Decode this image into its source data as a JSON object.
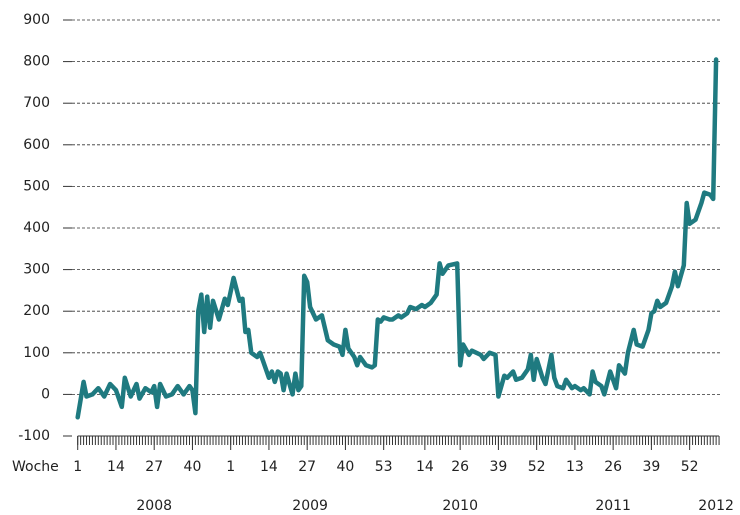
{
  "chart_data": {
    "type": "line",
    "x_axis_label": "Woche",
    "x": [
      1,
      3,
      4,
      6,
      8,
      10,
      12,
      14,
      16,
      17,
      19,
      21,
      22,
      24,
      26,
      27,
      28,
      29,
      31,
      33,
      35,
      37,
      39,
      40,
      41,
      42,
      43,
      44,
      45,
      46,
      47,
      49,
      51,
      52,
      54,
      56,
      57,
      58,
      59,
      60,
      62,
      63,
      64,
      66,
      67,
      68,
      69,
      70,
      71,
      72,
      73,
      74,
      75,
      76,
      77,
      78,
      79,
      80,
      82,
      84,
      86,
      88,
      90,
      91,
      92,
      93,
      95,
      96,
      97,
      99,
      101,
      102,
      103,
      104,
      105,
      107,
      108,
      110,
      111,
      113,
      114,
      116,
      118,
      119,
      121,
      123,
      124,
      125,
      126,
      127,
      130,
      131,
      132,
      134,
      135,
      138,
      139,
      141,
      143,
      144,
      146,
      147,
      149,
      150,
      152,
      154,
      155,
      156,
      157,
      159,
      160,
      162,
      163,
      164,
      166,
      167,
      169,
      170,
      172,
      173,
      175,
      176,
      177,
      179,
      180,
      182,
      184,
      185,
      187,
      188,
      190,
      191,
      193,
      195,
      196,
      197,
      198,
      199,
      201,
      203,
      204,
      205,
      207,
      208,
      209,
      211,
      213,
      214,
      216,
      217,
      218
    ],
    "series": [
      {
        "name": "Woche",
        "color": "#1f7a80",
        "values": [
          -55,
          30,
          -5,
          0,
          15,
          -5,
          25,
          10,
          -30,
          40,
          -5,
          25,
          -10,
          15,
          5,
          20,
          -30,
          25,
          -5,
          0,
          20,
          0,
          20,
          10,
          -45,
          200,
          240,
          150,
          235,
          160,
          225,
          180,
          230,
          215,
          280,
          225,
          230,
          150,
          155,
          100,
          90,
          100,
          80,
          40,
          55,
          30,
          55,
          50,
          10,
          50,
          25,
          0,
          50,
          10,
          20,
          285,
          270,
          210,
          180,
          190,
          130,
          120,
          115,
          95,
          155,
          110,
          90,
          70,
          90,
          70,
          65,
          70,
          180,
          175,
          185,
          180,
          180,
          190,
          185,
          195,
          210,
          205,
          215,
          210,
          220,
          240,
          315,
          290,
          300,
          310,
          315,
          70,
          120,
          95,
          105,
          95,
          85,
          100,
          95,
          -5,
          45,
          40,
          55,
          35,
          40,
          60,
          95,
          35,
          85,
          40,
          25,
          95,
          40,
          20,
          15,
          35,
          15,
          20,
          10,
          15,
          0,
          55,
          30,
          20,
          0,
          55,
          15,
          70,
          50,
          100,
          155,
          120,
          115,
          155,
          195,
          200,
          225,
          210,
          220,
          260,
          295,
          260,
          310,
          460,
          410,
          420,
          460,
          485,
          480,
          470,
          805
        ]
      }
    ],
    "xlim": [
      -4,
      220
    ],
    "xticks": [
      {
        "value": 1,
        "label": "1"
      },
      {
        "value": 14,
        "label": "14"
      },
      {
        "value": 27,
        "label": "27"
      },
      {
        "value": 40,
        "label": "40"
      },
      {
        "value": 53,
        "label": "1"
      },
      {
        "value": 66,
        "label": "14"
      },
      {
        "value": 79,
        "label": "27"
      },
      {
        "value": 92,
        "label": "40"
      },
      {
        "value": 105,
        "label": "53"
      },
      {
        "value": 119,
        "label": "14"
      },
      {
        "value": 131,
        "label": "26"
      },
      {
        "value": 144,
        "label": "39"
      },
      {
        "value": 157,
        "label": "52"
      },
      {
        "value": 170,
        "label": "13"
      },
      {
        "value": 183,
        "label": "26"
      },
      {
        "value": 196,
        "label": "39"
      },
      {
        "value": 209,
        "label": "52"
      }
    ],
    "xminor_range": [
      1,
      219
    ],
    "year_labels": [
      {
        "value": 27,
        "label": "2008"
      },
      {
        "value": 80,
        "label": "2009"
      },
      {
        "value": 131,
        "label": "2010"
      },
      {
        "value": 183,
        "label": "2011"
      },
      {
        "value": 218,
        "label": "2012"
      }
    ],
    "ylim": [
      -100,
      900
    ],
    "yticks": [
      -100,
      0,
      100,
      200,
      300,
      400,
      500,
      600,
      700,
      800,
      900
    ],
    "grid": true,
    "legend": false
  }
}
